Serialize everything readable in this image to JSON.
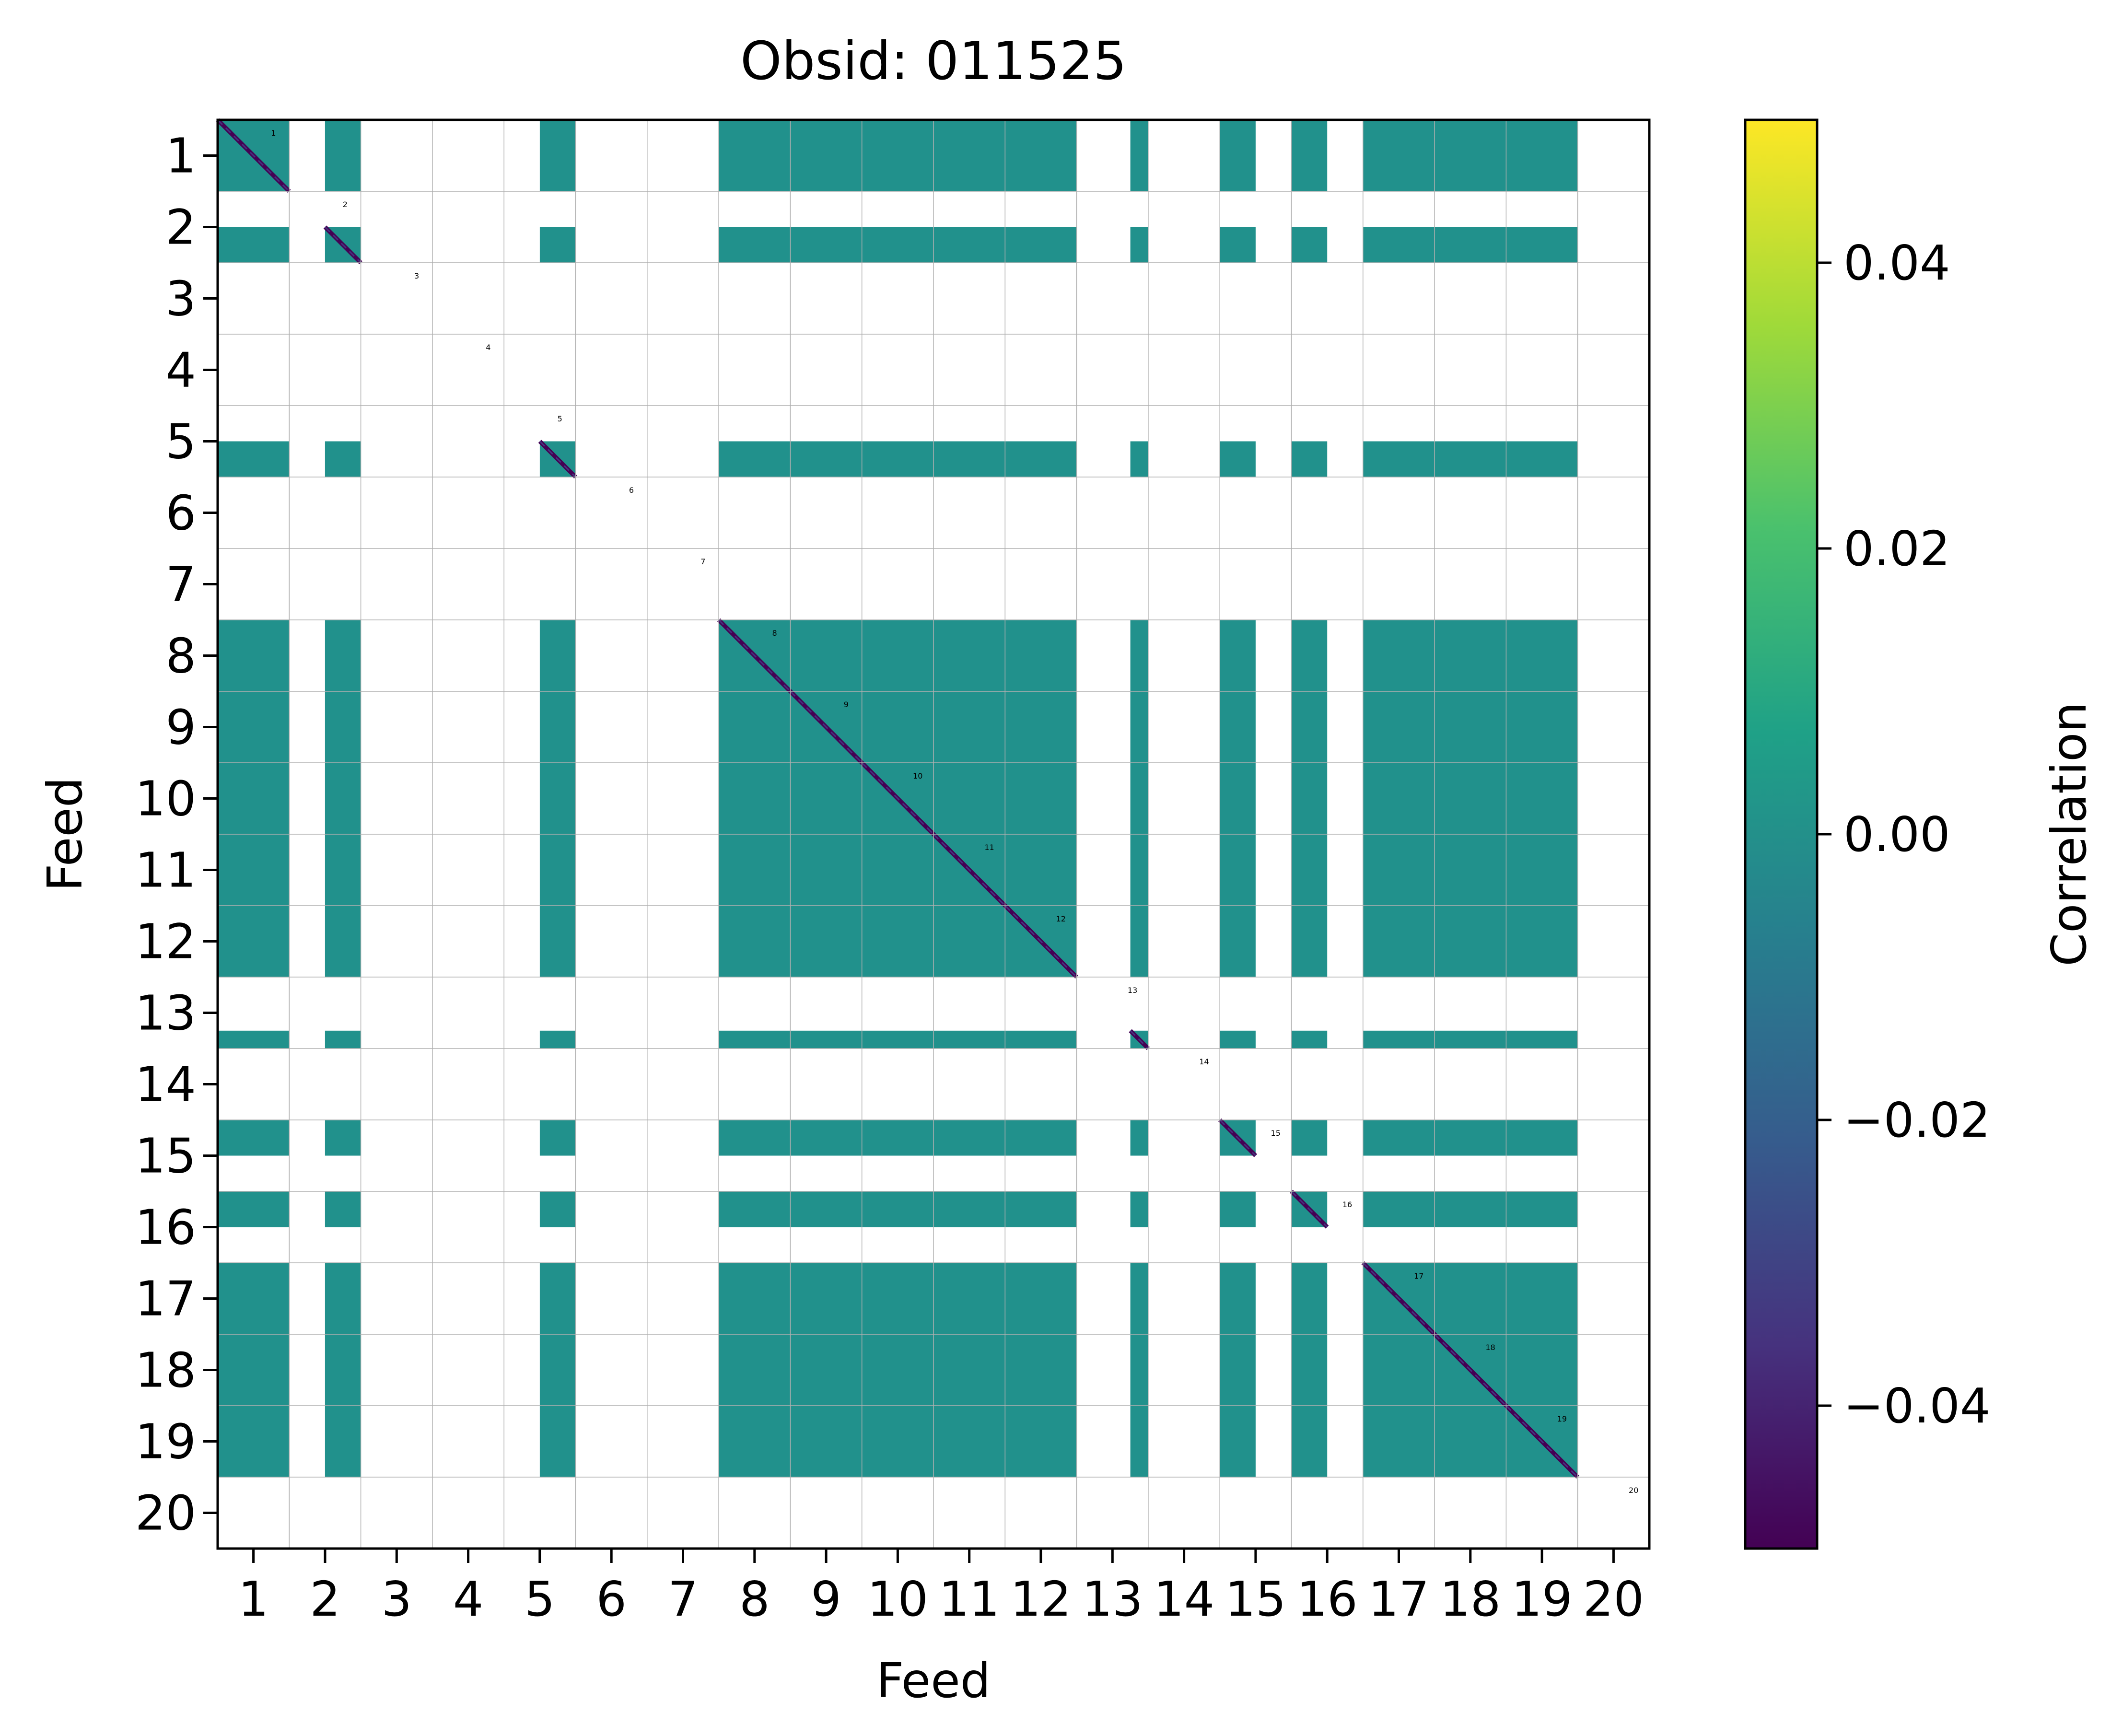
{
  "chart_data": {
    "type": "heatmap",
    "title": "Obsid: 011525",
    "xlabel": "Feed",
    "ylabel": "Feed",
    "x_tick_labels": [
      "1",
      "2",
      "3",
      "4",
      "5",
      "6",
      "7",
      "8",
      "9",
      "10",
      "11",
      "12",
      "13",
      "14",
      "15",
      "16",
      "17",
      "18",
      "19",
      "20"
    ],
    "y_tick_labels": [
      "1",
      "2",
      "3",
      "4",
      "5",
      "6",
      "7",
      "8",
      "9",
      "10",
      "11",
      "12",
      "13",
      "14",
      "15",
      "16",
      "17",
      "18",
      "19",
      "20"
    ],
    "feeds": [
      1,
      2,
      3,
      4,
      5,
      6,
      7,
      8,
      9,
      10,
      11,
      12,
      13,
      14,
      15,
      16,
      17,
      18,
      19,
      20
    ],
    "sidebands_per_feed": 4,
    "valid_sidebands": {
      "1": [
        1,
        2,
        3,
        4
      ],
      "2": [
        3,
        4
      ],
      "3": [],
      "4": [],
      "5": [
        3,
        4
      ],
      "6": [],
      "7": [],
      "8": [
        1,
        2,
        3,
        4
      ],
      "9": [
        1,
        2,
        3,
        4
      ],
      "10": [
        1,
        2,
        3,
        4
      ],
      "11": [
        1,
        2,
        3,
        4
      ],
      "12": [
        1,
        2,
        3,
        4
      ],
      "13": [
        4
      ],
      "14": [],
      "15": [
        1,
        2
      ],
      "16": [
        1,
        2
      ],
      "17": [
        1,
        2,
        3,
        4
      ],
      "18": [
        1,
        2,
        3,
        4
      ],
      "19": [
        1,
        2,
        3,
        4
      ],
      "20": []
    },
    "offdiagonal_value": 0.0,
    "diagonal_value": -0.05,
    "diagonal_labels": [
      "1",
      "2",
      "3",
      "4",
      "5",
      "6",
      "7",
      "8",
      "9",
      "10",
      "11",
      "12",
      "13",
      "14",
      "15",
      "16",
      "17",
      "18",
      "19",
      "20"
    ],
    "colorbar": {
      "label": "Correlation",
      "vmin": -0.05,
      "vmax": 0.05,
      "ticks": [
        0.04,
        0.02,
        0.0,
        -0.02,
        -0.04
      ],
      "tick_labels": [
        "0.04",
        "0.02",
        "0.00",
        "−0.02",
        "−0.04"
      ],
      "colormap": "viridis"
    },
    "grid": true
  },
  "colors": {
    "zero": "#21918c",
    "diagonal": "#440154",
    "diagonal_alt": "#46327e",
    "grid": "#b0b0b0",
    "viridis_stops": [
      "#440154",
      "#46327e",
      "#365c8d",
      "#277f8e",
      "#1fa187",
      "#4ac16d",
      "#a0da39",
      "#fde725"
    ]
  }
}
